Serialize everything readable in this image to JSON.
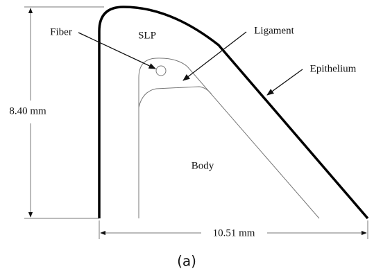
{
  "labels": {
    "fiber": "Fiber",
    "slp": "SLP",
    "ligament": "Ligament",
    "epithelium": "Epithelium",
    "body": "Body"
  },
  "dimensions": {
    "height": "8.40 mm",
    "width": "10.51 mm"
  },
  "caption": "(a)"
}
